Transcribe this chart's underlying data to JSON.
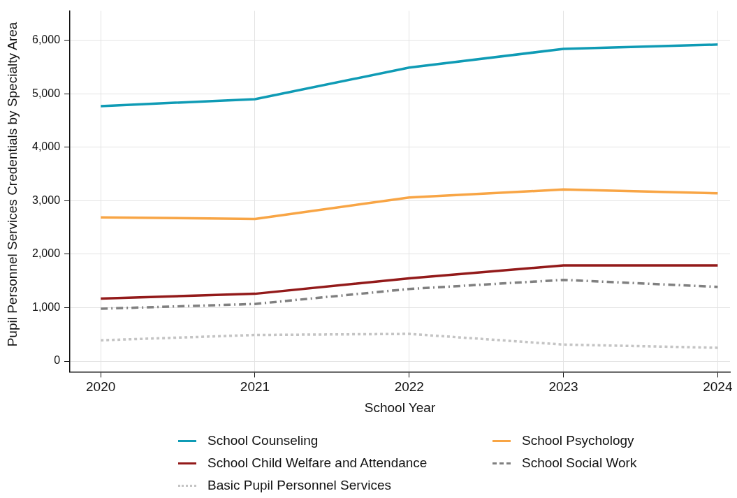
{
  "chart_data": {
    "type": "line",
    "xlabel": "School Year",
    "ylabel": "Pupil Personnel Services Credentials by Specialty Area",
    "x": [
      2020,
      2021,
      2022,
      2023,
      2024
    ],
    "xlim": [
      2019.8,
      2024.08
    ],
    "xticks": [
      2020,
      2021,
      2022,
      2023,
      2024
    ],
    "ylim": [
      -200,
      6550
    ],
    "yticks": [
      {
        "value": 0,
        "label": "0"
      },
      {
        "value": 1000,
        "label": "1,000"
      },
      {
        "value": 2000,
        "label": "2,000"
      },
      {
        "value": 3000,
        "label": "3,000"
      },
      {
        "value": 4000,
        "label": "4,000"
      },
      {
        "value": 5000,
        "label": "5,000"
      },
      {
        "value": 6000,
        "label": "6,000"
      }
    ],
    "grid": true,
    "legend": "bottom",
    "marker": "none",
    "series": [
      {
        "name": "School Counseling",
        "color": "#0f9bb5",
        "line_style": "solid",
        "values": [
          4770,
          4900,
          5490,
          5840,
          5920
        ]
      },
      {
        "name": "School Psychology",
        "color": "#f8a545",
        "line_style": "solid",
        "values": [
          2690,
          2660,
          3060,
          3210,
          3140
        ]
      },
      {
        "name": "School Child Welfare and Attendance",
        "color": "#931a1a",
        "line_style": "solid",
        "values": [
          1170,
          1260,
          1550,
          1790,
          1790
        ]
      },
      {
        "name": "School Social Work",
        "color": "#808080",
        "line_style": "dashed",
        "values": [
          980,
          1070,
          1350,
          1520,
          1390
        ]
      },
      {
        "name": "Basic Pupil Personnel Services",
        "color": "#c4c4c4",
        "line_style": "dotted",
        "values": [
          390,
          490,
          510,
          310,
          250
        ]
      }
    ]
  }
}
